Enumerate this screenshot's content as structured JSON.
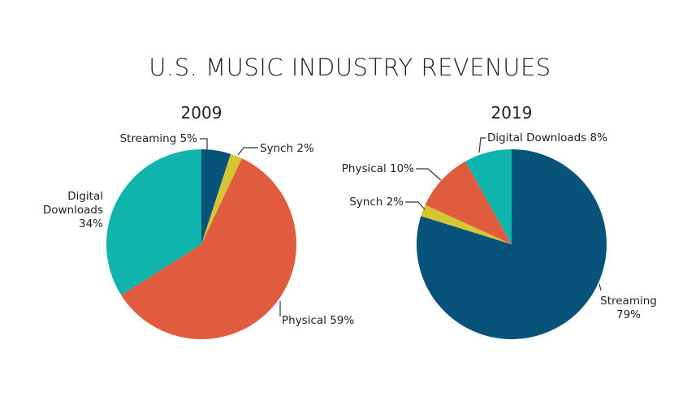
{
  "title": "U.S. MUSIC INDUSTRY REVENUES",
  "colors": {
    "streaming": "#075379",
    "synch": "#d4c533",
    "physical": "#e15c3e",
    "digital_downloads": "#0fb5ac",
    "leader": "#333333"
  },
  "chart_data": [
    {
      "type": "pie",
      "title": "2009",
      "slices": [
        {
          "label": "Streaming",
          "value": 5,
          "color": "#075379",
          "label_lines": [
            "Streaming 5%"
          ]
        },
        {
          "label": "Synch",
          "value": 2,
          "color": "#d4c533",
          "label_lines": [
            "Synch 2%"
          ]
        },
        {
          "label": "Physical",
          "value": 59,
          "color": "#e15c3e",
          "label_lines": [
            "Physical 59%"
          ]
        },
        {
          "label": "Digital Downloads",
          "value": 34,
          "color": "#0fb5ac",
          "label_lines": [
            "Digital",
            "Downloads",
            "34%"
          ]
        }
      ]
    },
    {
      "type": "pie",
      "title": "2019",
      "slices": [
        {
          "label": "Streaming",
          "value": 79,
          "color": "#075379",
          "label_lines": [
            "Streaming",
            "79%"
          ]
        },
        {
          "label": "Synch",
          "value": 2,
          "color": "#d4c533",
          "label_lines": [
            "Synch 2%"
          ]
        },
        {
          "label": "Physical",
          "value": 10,
          "color": "#e15c3e",
          "label_lines": [
            "Physical 10%"
          ]
        },
        {
          "label": "Digital Downloads",
          "value": 8,
          "color": "#0fb5ac",
          "label_lines": [
            "Digital Downloads 8%"
          ]
        }
      ]
    }
  ]
}
